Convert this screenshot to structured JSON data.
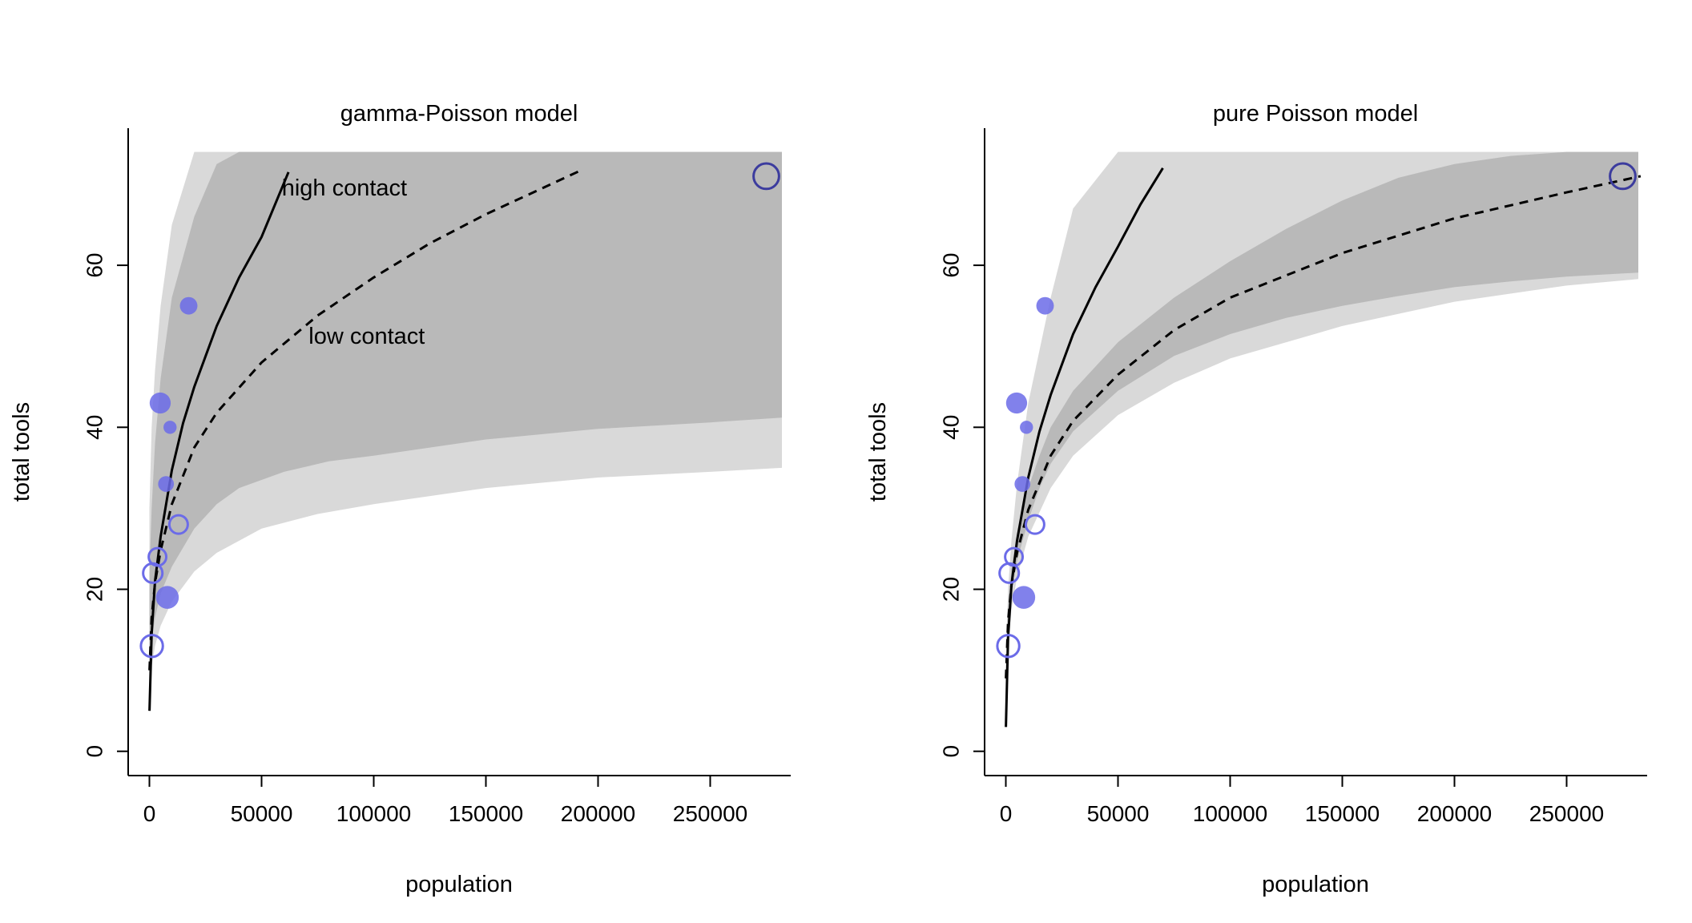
{
  "chart_data": [
    {
      "type": "scatter",
      "title": "gamma-Poisson model",
      "xlabel": "population",
      "ylabel": "total tools",
      "xlim": [
        -9000,
        286000
      ],
      "ylim": [
        -3,
        77
      ],
      "xticks": [
        0,
        50000,
        100000,
        150000,
        200000,
        250000
      ],
      "yticks": [
        0,
        20,
        40,
        60
      ],
      "grid": false,
      "colors": {
        "inner_band": "#b9b9b9",
        "outer_band": "#d9d9d9",
        "point": "#6b6be8",
        "point_dark": "#3c3c9e",
        "line": "#000000"
      },
      "annotations": [
        {
          "text": "high contact",
          "x": 59000,
          "y": 68.6
        },
        {
          "text": "low contact",
          "x": 71000,
          "y": 50.3
        }
      ],
      "points": [
        {
          "x": 1100,
          "y": 13,
          "contact": "low",
          "weight": 0.7
        },
        {
          "x": 1500,
          "y": 22,
          "contact": "low",
          "weight": 0.55
        },
        {
          "x": 3600,
          "y": 24,
          "contact": "low",
          "weight": 0.45
        },
        {
          "x": 4800,
          "y": 43,
          "contact": "high",
          "weight": 0.65
        },
        {
          "x": 7400,
          "y": 33,
          "contact": "high",
          "weight": 0.35
        },
        {
          "x": 8000,
          "y": 19,
          "contact": "high",
          "weight": 0.75
        },
        {
          "x": 9200,
          "y": 40,
          "contact": "high",
          "weight": 0.2
        },
        {
          "x": 13000,
          "y": 28,
          "contact": "low",
          "weight": 0.5
        },
        {
          "x": 17500,
          "y": 55,
          "contact": "high",
          "weight": 0.45
        },
        {
          "x": 275000,
          "y": 71,
          "contact": "low",
          "weight": 0.9
        }
      ],
      "series": [
        {
          "name": "high contact",
          "style": "solid",
          "x": [
            50,
            1000,
            2500,
            5000,
            10000,
            15000,
            20000,
            30000,
            40000,
            50000,
            62000
          ],
          "y": [
            5,
            14.5,
            21,
            26.5,
            34.7,
            40.5,
            45,
            52.5,
            58.5,
            63.5,
            71.5
          ]
        },
        {
          "name": "low contact",
          "style": "dashed",
          "x": [
            50,
            1000,
            2500,
            5000,
            10000,
            20000,
            30000,
            50000,
            75000,
            100000,
            125000,
            150000,
            175000,
            193000
          ],
          "y": [
            10,
            16.5,
            20.8,
            24.8,
            30.5,
            37.5,
            41.8,
            48,
            53.8,
            58.5,
            62.7,
            66.3,
            69.5,
            71.8
          ]
        }
      ],
      "bands": [
        {
          "level": "outer",
          "x": [
            0,
            1000,
            2500,
            5000,
            10000,
            20000,
            30000,
            50000,
            75000,
            100000,
            150000,
            200000,
            250000,
            283000
          ],
          "lower": [
            8,
            10.5,
            13,
            15.5,
            18.5,
            22.2,
            24.5,
            27.5,
            29.3,
            30.5,
            32.5,
            33.8,
            34.5,
            35
          ],
          "upper": [
            30,
            40,
            47,
            55,
            65,
            74,
            74,
            74,
            74,
            74,
            74,
            74,
            74,
            74
          ]
        },
        {
          "level": "inner",
          "x": [
            0,
            1000,
            2500,
            5000,
            10000,
            20000,
            30000,
            40000,
            50000,
            60000,
            80000,
            100000,
            150000,
            200000,
            250000,
            283000
          ],
          "lower": [
            9,
            13.5,
            16.5,
            19.5,
            22.8,
            27.5,
            30.5,
            32.5,
            33.5,
            34.5,
            35.8,
            36.5,
            38.5,
            39.8,
            40.6,
            41.2
          ],
          "upper": [
            22,
            30,
            38,
            46,
            56,
            66,
            72.5,
            74,
            74,
            74,
            74,
            74,
            74,
            74,
            74,
            74
          ]
        }
      ]
    },
    {
      "type": "scatter",
      "title": "pure Poisson model",
      "xlabel": "population",
      "ylabel": "total tools",
      "xlim": [
        -9000,
        286000
      ],
      "ylim": [
        -3,
        77
      ],
      "xticks": [
        0,
        50000,
        100000,
        150000,
        200000,
        250000
      ],
      "yticks": [
        0,
        20,
        40,
        60
      ],
      "grid": false,
      "colors": {
        "inner_band": "#b9b9b9",
        "outer_band": "#d9d9d9",
        "point": "#6b6be8",
        "point_dark": "#3c3c9e",
        "line": "#000000"
      },
      "annotations": [],
      "points": [
        {
          "x": 1100,
          "y": 13,
          "contact": "low",
          "weight": 0.7
        },
        {
          "x": 1500,
          "y": 22,
          "contact": "low",
          "weight": 0.55
        },
        {
          "x": 3600,
          "y": 24,
          "contact": "low",
          "weight": 0.45
        },
        {
          "x": 4800,
          "y": 43,
          "contact": "high",
          "weight": 0.65
        },
        {
          "x": 7400,
          "y": 33,
          "contact": "high",
          "weight": 0.35
        },
        {
          "x": 8000,
          "y": 19,
          "contact": "high",
          "weight": 0.75
        },
        {
          "x": 9200,
          "y": 40,
          "contact": "high",
          "weight": 0.2
        },
        {
          "x": 13000,
          "y": 28,
          "contact": "low",
          "weight": 0.5
        },
        {
          "x": 17500,
          "y": 55,
          "contact": "high",
          "weight": 0.45
        },
        {
          "x": 275000,
          "y": 71,
          "contact": "low",
          "weight": 0.9
        }
      ],
      "series": [
        {
          "name": "high contact",
          "style": "solid",
          "x": [
            50,
            1000,
            2500,
            5000,
            10000,
            15000,
            20000,
            30000,
            40000,
            50000,
            60000,
            70000
          ],
          "y": [
            3,
            14,
            20.5,
            26,
            33.8,
            39.5,
            44,
            51.5,
            57.3,
            62.3,
            67.5,
            72
          ]
        },
        {
          "name": "low contact",
          "style": "dashed",
          "x": [
            50,
            1000,
            2500,
            5000,
            10000,
            20000,
            30000,
            50000,
            75000,
            100000,
            150000,
            200000,
            250000,
            283000
          ],
          "y": [
            9,
            16,
            20.5,
            24.5,
            29.8,
            36.5,
            40.8,
            46.5,
            52,
            56,
            61.5,
            65.8,
            69,
            71
          ]
        }
      ],
      "bands": [
        {
          "level": "outer",
          "x": [
            0,
            1000,
            2500,
            5000,
            10000,
            20000,
            30000,
            50000,
            75000,
            100000,
            150000,
            200000,
            250000,
            283000
          ],
          "lower": [
            7,
            13,
            17.5,
            21.5,
            26.5,
            32.5,
            36.5,
            41.5,
            45.5,
            48.5,
            52.5,
            55.5,
            57.5,
            58.3
          ],
          "upper": [
            12,
            20,
            26,
            33,
            43,
            56,
            67,
            74,
            74,
            74,
            74,
            74,
            74,
            74
          ]
        },
        {
          "level": "inner",
          "x": [
            0,
            1000,
            2500,
            5000,
            10000,
            15000,
            20000,
            30000,
            50000,
            75000,
            100000,
            125000,
            150000,
            175000,
            200000,
            225000,
            250000,
            283000
          ],
          "lower": [
            8,
            15,
            19.5,
            23.5,
            28.5,
            32.5,
            35.5,
            39.5,
            44.5,
            48.8,
            51.5,
            53.5,
            55,
            56.2,
            57.3,
            58,
            58.6,
            59.1
          ],
          "upper": [
            10,
            17.5,
            22.5,
            27,
            32.5,
            36.5,
            40,
            44.5,
            50.5,
            56,
            60.5,
            64.5,
            68,
            70.8,
            72.5,
            73.5,
            74,
            74
          ]
        }
      ]
    }
  ]
}
